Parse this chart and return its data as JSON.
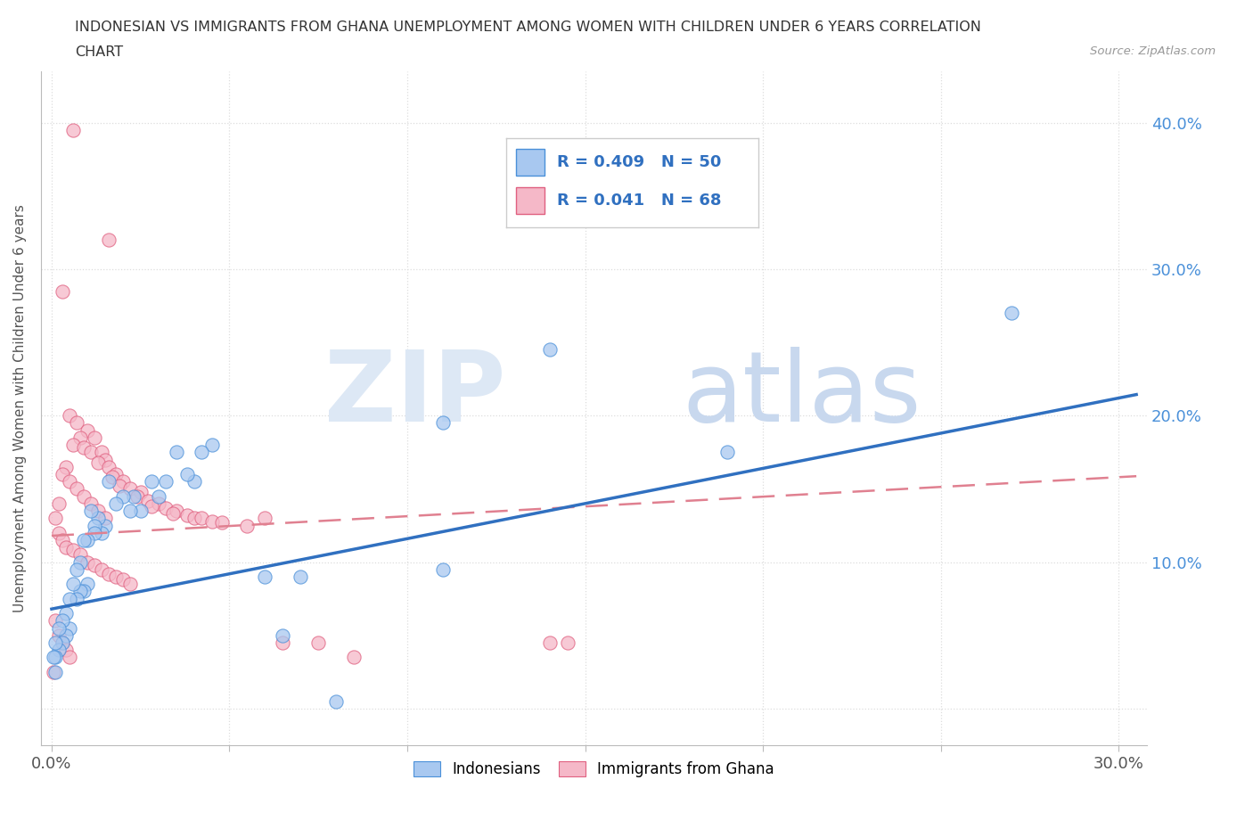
{
  "title_line1": "INDONESIAN VS IMMIGRANTS FROM GHANA UNEMPLOYMENT AMONG WOMEN WITH CHILDREN UNDER 6 YEARS CORRELATION",
  "title_line2": "CHART",
  "source": "Source: ZipAtlas.com",
  "ylabel": "Unemployment Among Women with Children Under 6 years",
  "xlim": [
    -0.003,
    0.308
  ],
  "ylim": [
    -0.025,
    0.435
  ],
  "xticks": [
    0.0,
    0.05,
    0.1,
    0.15,
    0.2,
    0.25,
    0.3
  ],
  "yticks": [
    0.0,
    0.1,
    0.2,
    0.3,
    0.4
  ],
  "xticklabels_show": [
    "0.0%",
    "30.0%"
  ],
  "xticklabels_pos": [
    0.0,
    0.3
  ],
  "yticklabels": [
    "10.0%",
    "20.0%",
    "30.0%",
    "40.0%"
  ],
  "ytick_pos": [
    0.1,
    0.2,
    0.3,
    0.4
  ],
  "color_indonesian_fill": "#a8c8f0",
  "color_indonesian_edge": "#4a90d9",
  "color_ghana_fill": "#f5b8c8",
  "color_ghana_edge": "#e06080",
  "color_line_indonesian": "#3070c0",
  "color_line_ghana": "#e08090",
  "watermark_zip_color": "#dde8f5",
  "watermark_atlas_color": "#c8d8ee",
  "legend_box_color": "#ffffff",
  "legend_border_color": "#cccccc",
  "grid_color": "#dddddd",
  "title_color": "#333333",
  "ytick_color": "#4a90d9",
  "xtick_color": "#555555",
  "source_color": "#999999",
  "ylabel_color": "#555555",
  "indo_trend_start_y": 0.068,
  "indo_trend_end_y": 0.212,
  "ghana_trend_start_y": 0.118,
  "ghana_trend_end_y": 0.158
}
